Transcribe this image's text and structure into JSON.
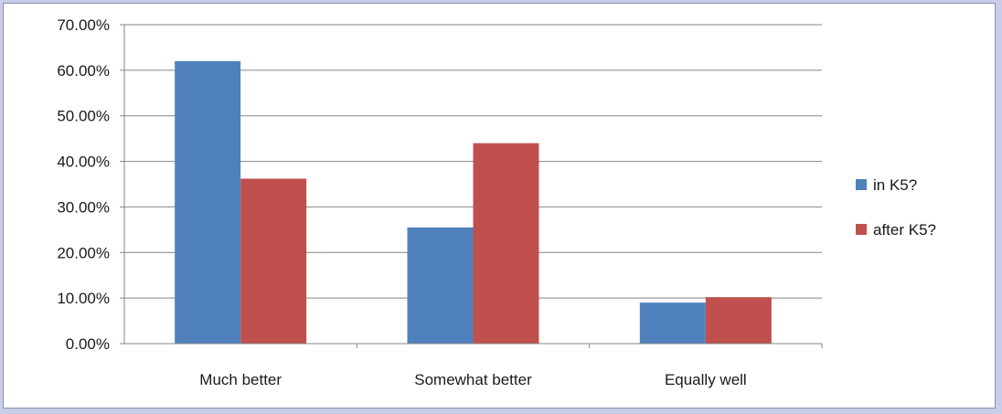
{
  "chart_data": {
    "type": "bar",
    "categories": [
      "Much better",
      "Somewhat better",
      "Equally well"
    ],
    "series": [
      {
        "name": "in K5?",
        "color": "#4f81bd",
        "values": [
          0.62,
          0.255,
          0.09
        ]
      },
      {
        "name": "after K5?",
        "color": "#c0504d",
        "values": [
          0.362,
          0.44,
          0.102
        ]
      }
    ],
    "ylim": [
      0,
      0.7
    ],
    "yticks": [
      0,
      0.1,
      0.2,
      0.3,
      0.4,
      0.5,
      0.6,
      0.7
    ],
    "ytick_labels": [
      "0.00%",
      "10.00%",
      "20.00%",
      "30.00%",
      "40.00%",
      "50.00%",
      "60.00%",
      "70.00%"
    ],
    "grid": true,
    "legend_position": "right"
  },
  "colors": {
    "background": "#c9cde8",
    "grid": "#868686",
    "axis": "#868686"
  }
}
